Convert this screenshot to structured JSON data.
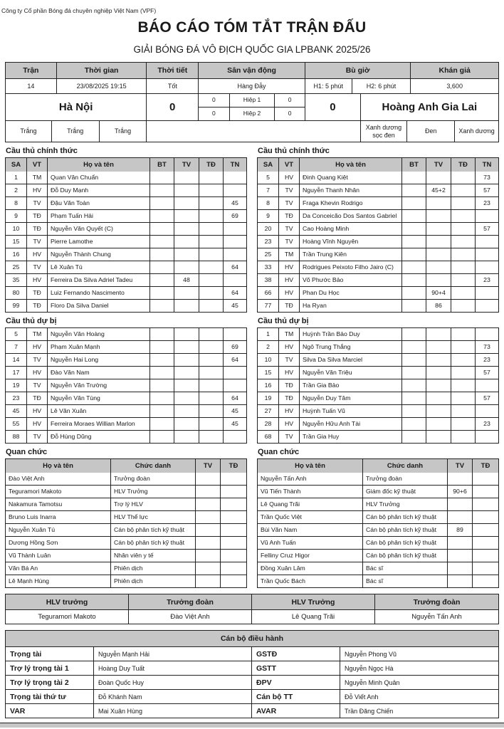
{
  "org": "Công ty Cổ phần Bóng đá chuyên nghiệp Việt Nam (VPF)",
  "title": "BÁO CÁO TÓM TẮT TRẬN ĐẤU",
  "subtitle": "GIẢI BÓNG ĐÁ VÔ ĐỊCH QUỐC GIA LPBANK 2025/26",
  "colors": {
    "header_gray": "#c6c6c6",
    "border": "#222222",
    "background": "#ffffff"
  },
  "match_info": {
    "headers": {
      "match": "Trận",
      "time": "Thời gian",
      "weather": "Thời tiết",
      "stadium": "Sân vận động",
      "extra_time": "Bù giờ",
      "attendance": "Khán giả"
    },
    "values": {
      "match": "14",
      "time": "23/08/2025 19:15",
      "weather": "Tốt",
      "stadium": "Hàng Đẫy",
      "extra_h1": "H1: 5 phút",
      "extra_h2": "H2: 6 phút",
      "attendance": "3,600"
    }
  },
  "score": {
    "home_team": "Hà Nội",
    "away_team": "Hoàng Anh Gia Lai",
    "home_score": "0",
    "away_score": "0",
    "halves": [
      {
        "label": "Hiệp 1",
        "home": "0",
        "away": "0"
      },
      {
        "label": "Hiệp 2",
        "home": "0",
        "away": "0"
      }
    ]
  },
  "kits": {
    "home": [
      "Trắng",
      "Trắng",
      "Trắng"
    ],
    "away": [
      "Xanh dương sọc đen",
      "Đen",
      "Xanh dương"
    ]
  },
  "sections": {
    "starting": "Cầu thủ chính thức",
    "subs": "Cầu thủ dự bị",
    "officials": "Quan chức",
    "executives": "Cán bộ điều hành"
  },
  "player_headers": {
    "sa": "SA",
    "vt": "VT",
    "name": "Họ và tên",
    "bt": "BT",
    "tv": "TV",
    "td": "TĐ",
    "tn": "TN"
  },
  "official_headers": {
    "name": "Họ và tên",
    "role": "Chức danh",
    "tv": "TV",
    "td": "TĐ"
  },
  "home": {
    "starting": [
      {
        "sa": "1",
        "vt": "TM",
        "name": "Quan Văn Chuẩn",
        "bt": "",
        "tv": "",
        "td": "",
        "tn": ""
      },
      {
        "sa": "2",
        "vt": "HV",
        "name": "Đỗ Duy Mạnh",
        "bt": "",
        "tv": "",
        "td": "",
        "tn": ""
      },
      {
        "sa": "8",
        "vt": "TV",
        "name": "Đậu Văn Toàn",
        "bt": "",
        "tv": "",
        "td": "",
        "tn": "45"
      },
      {
        "sa": "9",
        "vt": "TĐ",
        "name": "Phạm Tuấn Hải",
        "bt": "",
        "tv": "",
        "td": "",
        "tn": "69"
      },
      {
        "sa": "10",
        "vt": "TĐ",
        "name": "Nguyễn Văn Quyết (C)",
        "bt": "",
        "tv": "",
        "td": "",
        "tn": ""
      },
      {
        "sa": "15",
        "vt": "TV",
        "name": "Pierre Lamothe",
        "bt": "",
        "tv": "",
        "td": "",
        "tn": ""
      },
      {
        "sa": "16",
        "vt": "HV",
        "name": "Nguyễn Thành Chung",
        "bt": "",
        "tv": "",
        "td": "",
        "tn": ""
      },
      {
        "sa": "25",
        "vt": "TV",
        "name": "Lê Xuân Tú",
        "bt": "",
        "tv": "",
        "td": "",
        "tn": "64"
      },
      {
        "sa": "35",
        "vt": "HV",
        "name": "Ferreira Da Silva Adriel Tadeu",
        "bt": "",
        "tv": "48",
        "td": "",
        "tn": ""
      },
      {
        "sa": "80",
        "vt": "TĐ",
        "name": "Luiz Fernando Nascimento",
        "bt": "",
        "tv": "",
        "td": "",
        "tn": "64"
      },
      {
        "sa": "99",
        "vt": "TĐ",
        "name": "Floro Da Silva Daniel",
        "bt": "",
        "tv": "",
        "td": "",
        "tn": "45"
      }
    ],
    "subs": [
      {
        "sa": "5",
        "vt": "TM",
        "name": "Nguyễn Văn Hoàng",
        "bt": "",
        "tv": "",
        "td": "",
        "tn": ""
      },
      {
        "sa": "7",
        "vt": "HV",
        "name": "Phạm Xuân Mạnh",
        "bt": "",
        "tv": "",
        "td": "",
        "tn": "69"
      },
      {
        "sa": "14",
        "vt": "TV",
        "name": "Nguyễn Hai Long",
        "bt": "",
        "tv": "",
        "td": "",
        "tn": "64"
      },
      {
        "sa": "17",
        "vt": "HV",
        "name": "Đào Văn Nam",
        "bt": "",
        "tv": "",
        "td": "",
        "tn": ""
      },
      {
        "sa": "19",
        "vt": "TV",
        "name": "Nguyễn Văn Trường",
        "bt": "",
        "tv": "",
        "td": "",
        "tn": ""
      },
      {
        "sa": "23",
        "vt": "TĐ",
        "name": "Nguyễn Văn Tùng",
        "bt": "",
        "tv": "",
        "td": "",
        "tn": "64"
      },
      {
        "sa": "45",
        "vt": "HV",
        "name": "Lê Văn Xuân",
        "bt": "",
        "tv": "",
        "td": "",
        "tn": "45"
      },
      {
        "sa": "55",
        "vt": "HV",
        "name": "Ferreira Moraes Willian Marlon",
        "bt": "",
        "tv": "",
        "td": "",
        "tn": "45"
      },
      {
        "sa": "88",
        "vt": "TV",
        "name": "Đỗ Hùng Dũng",
        "bt": "",
        "tv": "",
        "td": "",
        "tn": ""
      }
    ],
    "officials": [
      {
        "name": "Đào Việt Anh",
        "role": "Trưởng đoàn",
        "tv": "",
        "td": ""
      },
      {
        "name": "Teguramori Makoto",
        "role": "HLV Trưởng",
        "tv": "",
        "td": ""
      },
      {
        "name": "Nakamura Tamotsu",
        "role": "Trợ lý HLV",
        "tv": "",
        "td": ""
      },
      {
        "name": "Bruno Luis Inarra",
        "role": "HLV Thể lực",
        "tv": "",
        "td": ""
      },
      {
        "name": "Nguyễn Xuân Tú",
        "role": "Cán bộ phân tích kỹ thuật",
        "tv": "",
        "td": ""
      },
      {
        "name": "Dương Hồng Sơn",
        "role": "Cán bộ phân tích kỹ thuật",
        "tv": "",
        "td": ""
      },
      {
        "name": "Vũ Thành Luân",
        "role": "Nhân viên y tế",
        "tv": "",
        "td": ""
      },
      {
        "name": "Văn Bá An",
        "role": "Phiên dịch",
        "tv": "",
        "td": ""
      },
      {
        "name": "Lê Mạnh Hùng",
        "role": "Phiên dịch",
        "tv": "",
        "td": ""
      }
    ]
  },
  "away": {
    "starting": [
      {
        "sa": "5",
        "vt": "HV",
        "name": "Đinh Quang Kiệt",
        "bt": "",
        "tv": "",
        "td": "",
        "tn": "73"
      },
      {
        "sa": "7",
        "vt": "TV",
        "name": "Nguyễn Thanh Nhân",
        "bt": "",
        "tv": "45+2",
        "td": "",
        "tn": "57"
      },
      {
        "sa": "8",
        "vt": "TV",
        "name": "Fraga Khevin Rodrigo",
        "bt": "",
        "tv": "",
        "td": "",
        "tn": "23"
      },
      {
        "sa": "9",
        "vt": "TĐ",
        "name": "Da Conceicão Dos Santos Gabriel",
        "bt": "",
        "tv": "",
        "td": "",
        "tn": ""
      },
      {
        "sa": "20",
        "vt": "TV",
        "name": "Cao Hoàng Minh",
        "bt": "",
        "tv": "",
        "td": "",
        "tn": "57"
      },
      {
        "sa": "23",
        "vt": "TV",
        "name": "Hoàng Vĩnh Nguyên",
        "bt": "",
        "tv": "",
        "td": "",
        "tn": ""
      },
      {
        "sa": "25",
        "vt": "TM",
        "name": "Trần Trung Kiên",
        "bt": "",
        "tv": "",
        "td": "",
        "tn": ""
      },
      {
        "sa": "33",
        "vt": "HV",
        "name": "Rodrigues Peixoto Filho Jairo (C)",
        "bt": "",
        "tv": "",
        "td": "",
        "tn": ""
      },
      {
        "sa": "38",
        "vt": "HV",
        "name": "Võ Phước Bảo",
        "bt": "",
        "tv": "",
        "td": "",
        "tn": "23"
      },
      {
        "sa": "66",
        "vt": "HV",
        "name": "Phan Du Học",
        "bt": "",
        "tv": "90+4",
        "td": "",
        "tn": ""
      },
      {
        "sa": "77",
        "vt": "TĐ",
        "name": "Ha Ryan",
        "bt": "",
        "tv": "86",
        "td": "",
        "tn": ""
      }
    ],
    "subs": [
      {
        "sa": "1",
        "vt": "TM",
        "name": "Huỳnh Trần Bảo Duy",
        "bt": "",
        "tv": "",
        "td": "",
        "tn": ""
      },
      {
        "sa": "2",
        "vt": "HV",
        "name": "Ngô Trung Thắng",
        "bt": "",
        "tv": "",
        "td": "",
        "tn": "73"
      },
      {
        "sa": "10",
        "vt": "TV",
        "name": "Silva Da Silva Marciel",
        "bt": "",
        "tv": "",
        "td": "",
        "tn": "23"
      },
      {
        "sa": "15",
        "vt": "HV",
        "name": "Nguyễn Văn Triệu",
        "bt": "",
        "tv": "",
        "td": "",
        "tn": "57"
      },
      {
        "sa": "16",
        "vt": "TĐ",
        "name": "Trần Gia Bảo",
        "bt": "",
        "tv": "",
        "td": "",
        "tn": ""
      },
      {
        "sa": "19",
        "vt": "TĐ",
        "name": "Nguyễn Duy Tâm",
        "bt": "",
        "tv": "",
        "td": "",
        "tn": "57"
      },
      {
        "sa": "27",
        "vt": "HV",
        "name": "Huỳnh Tuấn Vũ",
        "bt": "",
        "tv": "",
        "td": "",
        "tn": ""
      },
      {
        "sa": "28",
        "vt": "HV",
        "name": "Nguyễn Hữu Anh Tài",
        "bt": "",
        "tv": "",
        "td": "",
        "tn": "23"
      },
      {
        "sa": "68",
        "vt": "TV",
        "name": "Trần Gia Huy",
        "bt": "",
        "tv": "",
        "td": "",
        "tn": ""
      }
    ],
    "officials": [
      {
        "name": "Nguyễn Tấn Anh",
        "role": "Trưởng đoàn",
        "tv": "",
        "td": ""
      },
      {
        "name": "Vũ Tiến Thành",
        "role": "Giám đốc kỹ thuật",
        "tv": "90+6",
        "td": ""
      },
      {
        "name": "Lê Quang Trãi",
        "role": "HLV Trưởng",
        "tv": "",
        "td": ""
      },
      {
        "name": "Trần Quốc Việt",
        "role": "Cán bộ phân tích kỹ thuật",
        "tv": "",
        "td": ""
      },
      {
        "name": "Bùi Văn Nam",
        "role": "Cán bộ phân tích kỹ thuật",
        "tv": "89",
        "td": ""
      },
      {
        "name": "Vũ Anh Tuấn",
        "role": "Cán bộ phân tích kỹ thuật",
        "tv": "",
        "td": ""
      },
      {
        "name": "Felliny Cruz Higor",
        "role": "Cán bộ phân tích kỹ thuật",
        "tv": "",
        "td": ""
      },
      {
        "name": "Đồng Xuân Lâm",
        "role": "Bác sĩ",
        "tv": "",
        "td": ""
      },
      {
        "name": "Trần Quốc Bách",
        "role": "Bác sĩ",
        "tv": "",
        "td": ""
      }
    ]
  },
  "hlv": {
    "home_coach_label": "HLV trưởng",
    "home_leader_label": "Trưởng đoàn",
    "away_coach_label": "HLV Trưởng",
    "away_leader_label": "Trưởng đoàn",
    "home_coach": "Teguramori Makoto",
    "home_leader": "Đào Việt Anh",
    "away_coach": "Lê Quang Trãi",
    "away_leader": "Nguyễn Tấn Anh"
  },
  "referees": [
    {
      "label1": "Trọng tài",
      "name1": "Nguyễn Mạnh Hải",
      "label2": "GSTĐ",
      "name2": "Nguyễn Phong Vũ"
    },
    {
      "label1": "Trợ lý trọng tài 1",
      "name1": "Hoàng Duy Tuất",
      "label2": "GSTT",
      "name2": "Nguyễn Ngọc Hà"
    },
    {
      "label1": "Trợ lý trọng tài 2",
      "name1": "Đoàn Quốc Huy",
      "label2": "ĐPV",
      "name2": "Nguyễn Minh Quân"
    },
    {
      "label1": "Trọng tài thứ tư",
      "name1": "Đỗ Khánh Nam",
      "label2": "Cán bộ TT",
      "name2": "Đỗ Viết Anh"
    },
    {
      "label1": "VAR",
      "name1": "Mai Xuân Hùng",
      "label2": "AVAR",
      "name2": "Trần Đăng Chiến"
    }
  ]
}
